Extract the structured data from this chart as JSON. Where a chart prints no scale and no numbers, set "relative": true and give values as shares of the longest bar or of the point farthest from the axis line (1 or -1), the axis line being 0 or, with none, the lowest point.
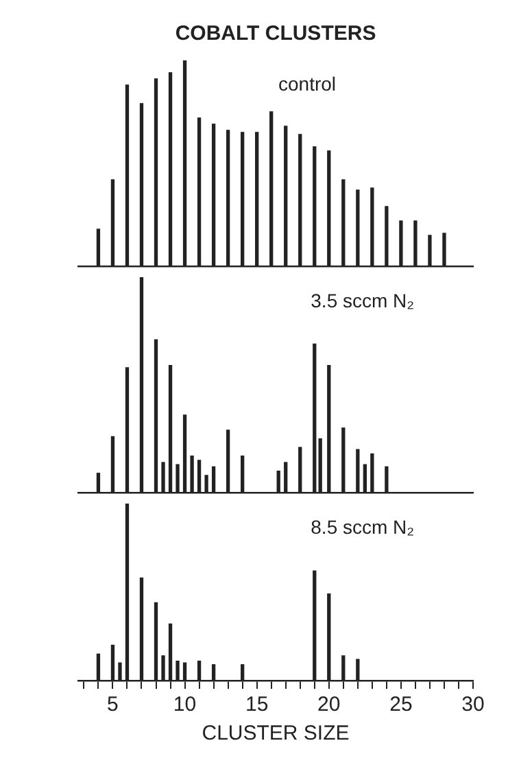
{
  "chart_data": [
    {
      "type": "bar",
      "title": "COBALT CLUSTERS",
      "annotations": [
        "control"
      ],
      "relative": true,
      "color": "#222222",
      "xlim": [
        2.6,
        30
      ],
      "tick_labels": false,
      "x": [
        4,
        5,
        6,
        7,
        8,
        9,
        10,
        11,
        12,
        13,
        14,
        15,
        16,
        17,
        18,
        19,
        20,
        21,
        22,
        23,
        24,
        25,
        26,
        27,
        28
      ],
      "values": [
        0.18,
        0.42,
        0.88,
        0.79,
        0.91,
        0.94,
        1,
        0.72,
        0.69,
        0.66,
        0.65,
        0.65,
        0.75,
        0.68,
        0.64,
        0.58,
        0.56,
        0.42,
        0.37,
        0.38,
        0.29,
        0.22,
        0.22,
        0.15,
        0.16
      ]
    },
    {
      "type": "bar",
      "annotations": [
        "3.5 sccm N₂"
      ],
      "relative": true,
      "color": "#222222",
      "xlim": [
        2.6,
        30
      ],
      "tick_labels": false,
      "x": [
        4,
        5,
        6,
        7,
        8,
        8.5,
        9,
        9.5,
        10,
        10.5,
        11,
        11.5,
        12,
        13,
        14,
        16.5,
        17,
        18,
        19,
        19.4,
        20,
        21,
        22,
        22.5,
        23,
        24
      ],
      "values": [
        0.09,
        0.26,
        0.58,
        1,
        0.71,
        0.14,
        0.59,
        0.13,
        0.36,
        0.17,
        0.15,
        0.08,
        0.12,
        0.29,
        0.17,
        0.1,
        0.14,
        0.21,
        0.69,
        0.25,
        0.59,
        0.3,
        0.2,
        0.13,
        0.18,
        0.12
      ]
    },
    {
      "type": "bar",
      "annotations": [
        "8.5 sccm N₂"
      ],
      "xlabel": "CLUSTER SIZE",
      "relative": true,
      "color": "#222222",
      "xlim": [
        2.6,
        30
      ],
      "tick_labels": "x",
      "xticks": [
        {
          "value": 3,
          "label": null
        },
        {
          "value": 4,
          "label": null
        },
        5,
        {
          "value": 6,
          "label": null
        },
        {
          "value": 7,
          "label": null
        },
        {
          "value": 8,
          "label": null
        },
        {
          "value": 9,
          "label": null
        },
        10,
        {
          "value": 11,
          "label": null
        },
        {
          "value": 12,
          "label": null
        },
        {
          "value": 13,
          "label": null
        },
        {
          "value": 14,
          "label": null
        },
        15,
        {
          "value": 16,
          "label": null
        },
        {
          "value": 17,
          "label": null
        },
        {
          "value": 18,
          "label": null
        },
        {
          "value": 19,
          "label": null
        },
        20,
        {
          "value": 21,
          "label": null
        },
        {
          "value": 22,
          "label": null
        },
        {
          "value": 23,
          "label": null
        },
        {
          "value": 24,
          "label": null
        },
        25,
        {
          "value": 26,
          "label": null
        },
        {
          "value": 27,
          "label": null
        },
        {
          "value": 28,
          "label": null
        },
        {
          "value": 29,
          "label": null
        },
        30
      ],
      "x": [
        4,
        5,
        5.5,
        6,
        7,
        8,
        8.5,
        9,
        9.5,
        10,
        11,
        12,
        14,
        19,
        20,
        21,
        22
      ],
      "values": [
        0.15,
        0.2,
        0.1,
        1,
        0.58,
        0.44,
        0.14,
        0.32,
        0.11,
        0.1,
        0.11,
        0.09,
        0.09,
        0.62,
        0.49,
        0.14,
        0.12
      ]
    }
  ]
}
